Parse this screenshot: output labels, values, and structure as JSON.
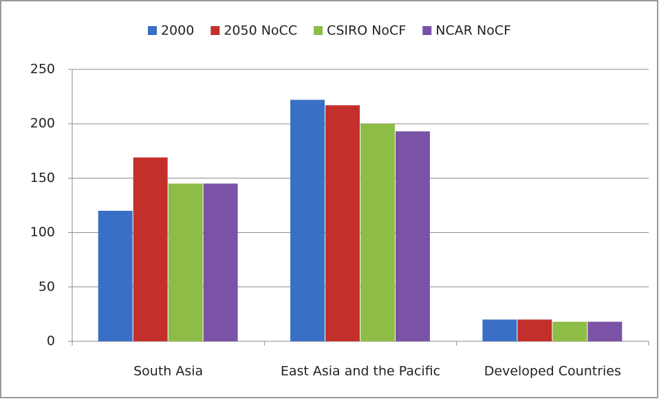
{
  "chart_data": {
    "type": "bar",
    "categories": [
      "South Asia",
      "East Asia and the Pacific",
      "Developed Countries"
    ],
    "series": [
      {
        "name": "2000",
        "color": "#3a6fc6",
        "values": [
          120,
          222,
          20
        ]
      },
      {
        "name": "2050 NoCC",
        "color": "#c3302c",
        "values": [
          169,
          217,
          20
        ]
      },
      {
        "name": "CSIRO NoCF",
        "color": "#8dbd47",
        "values": [
          145,
          200,
          18
        ]
      },
      {
        "name": "NCAR NoCF",
        "color": "#7a52a6",
        "values": [
          145,
          193,
          18
        ]
      }
    ],
    "ylim": [
      0,
      250
    ],
    "yticks": [
      0,
      50,
      100,
      150,
      200,
      250
    ],
    "grid": true,
    "legend": "top"
  }
}
